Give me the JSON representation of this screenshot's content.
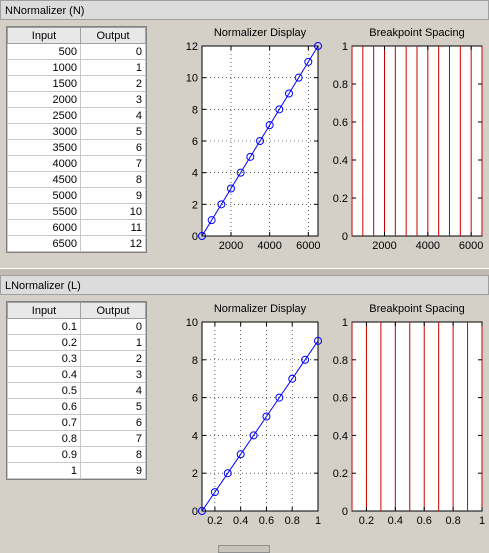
{
  "panels": [
    {
      "title": "NNormalizer (N)",
      "table": {
        "headers": [
          "Input",
          "Output"
        ],
        "rows": [
          [
            "500",
            "0"
          ],
          [
            "1000",
            "1"
          ],
          [
            "1500",
            "2"
          ],
          [
            "2000",
            "3"
          ],
          [
            "2500",
            "4"
          ],
          [
            "3000",
            "5"
          ],
          [
            "3500",
            "6"
          ],
          [
            "4000",
            "7"
          ],
          [
            "4500",
            "8"
          ],
          [
            "5000",
            "9"
          ],
          [
            "5500",
            "10"
          ],
          [
            "6000",
            "11"
          ],
          [
            "6500",
            "12"
          ]
        ]
      },
      "display_title": "Normalizer Display",
      "spacing_title": "Breakpoint Spacing"
    },
    {
      "title": "LNormalizer (L)",
      "table": {
        "headers": [
          "Input",
          "Output"
        ],
        "rows": [
          [
            "0.1",
            "0"
          ],
          [
            "0.2",
            "1"
          ],
          [
            "0.3",
            "2"
          ],
          [
            "0.4",
            "3"
          ],
          [
            "0.5",
            "4"
          ],
          [
            "0.6",
            "5"
          ],
          [
            "0.7",
            "6"
          ],
          [
            "0.8",
            "7"
          ],
          [
            "0.9",
            "8"
          ],
          [
            "1",
            "9"
          ]
        ]
      },
      "display_title": "Normalizer Display",
      "spacing_title": "Breakpoint Spacing"
    }
  ],
  "chart_data": [
    {
      "type": "line",
      "title": "Normalizer Display",
      "x": [
        500,
        1000,
        1500,
        2000,
        2500,
        3000,
        3500,
        4000,
        4500,
        5000,
        5500,
        6000,
        6500
      ],
      "y": [
        0,
        1,
        2,
        3,
        4,
        5,
        6,
        7,
        8,
        9,
        10,
        11,
        12
      ],
      "xlim": [
        500,
        6500
      ],
      "ylim": [
        0,
        12
      ],
      "xticks": [
        "2000",
        "4000",
        "6000"
      ],
      "xtick_values": [
        2000,
        4000,
        6000
      ],
      "yticks": [
        "0",
        "2",
        "4",
        "6",
        "8",
        "10",
        "12"
      ],
      "ytick_values": [
        0,
        2,
        4,
        6,
        8,
        10,
        12
      ],
      "grid": true,
      "line_color": "#0000ff",
      "marker": "circle"
    },
    {
      "type": "bar",
      "title": "Breakpoint Spacing",
      "x": [
        500,
        1000,
        1500,
        2000,
        2500,
        3000,
        3500,
        4000,
        4500,
        5000,
        5500,
        6000,
        6500
      ],
      "values": [
        1,
        1,
        1,
        1,
        1,
        1,
        1,
        1,
        1,
        1,
        1,
        1,
        1
      ],
      "xlim": [
        500,
        6500
      ],
      "ylim": [
        0,
        1
      ],
      "xticks": [
        "2000",
        "4000",
        "6000"
      ],
      "xtick_values": [
        2000,
        4000,
        6000
      ],
      "yticks": [
        "0",
        "0.2",
        "0.4",
        "0.6",
        "0.8",
        "1"
      ],
      "ytick_values": [
        0,
        0.2,
        0.4,
        0.6,
        0.8,
        1
      ],
      "grid": false,
      "line_color": "#cc0000"
    },
    {
      "type": "line",
      "title": "Normalizer Display",
      "x": [
        0.1,
        0.2,
        0.3,
        0.4,
        0.5,
        0.6,
        0.7,
        0.8,
        0.9,
        1
      ],
      "y": [
        0,
        1,
        2,
        3,
        4,
        5,
        6,
        7,
        8,
        9
      ],
      "xlim": [
        0.1,
        1
      ],
      "ylim": [
        0,
        10
      ],
      "xticks": [
        "0.2",
        "0.4",
        "0.6",
        "0.8",
        "1"
      ],
      "xtick_values": [
        0.2,
        0.4,
        0.6,
        0.8,
        1
      ],
      "yticks": [
        "0",
        "2",
        "4",
        "6",
        "8",
        "10"
      ],
      "ytick_values": [
        0,
        2,
        4,
        6,
        8,
        10
      ],
      "grid": true,
      "line_color": "#0000ff",
      "marker": "circle"
    },
    {
      "type": "bar",
      "title": "Breakpoint Spacing",
      "x": [
        0.1,
        0.2,
        0.3,
        0.4,
        0.5,
        0.6,
        0.7,
        0.8,
        0.9,
        1
      ],
      "values": [
        1,
        1,
        1,
        1,
        1,
        1,
        1,
        1,
        1,
        1
      ],
      "xlim": [
        0.1,
        1
      ],
      "ylim": [
        0,
        1
      ],
      "xticks": [
        "0.2",
        "0.4",
        "0.6",
        "0.8",
        "1"
      ],
      "xtick_values": [
        0.2,
        0.4,
        0.6,
        0.8,
        1
      ],
      "yticks": [
        "0",
        "0.2",
        "0.4",
        "0.6",
        "0.8",
        "1"
      ],
      "ytick_values": [
        0,
        0.2,
        0.4,
        0.6,
        0.8,
        1
      ],
      "grid": false,
      "line_color": "#cc0000"
    }
  ]
}
